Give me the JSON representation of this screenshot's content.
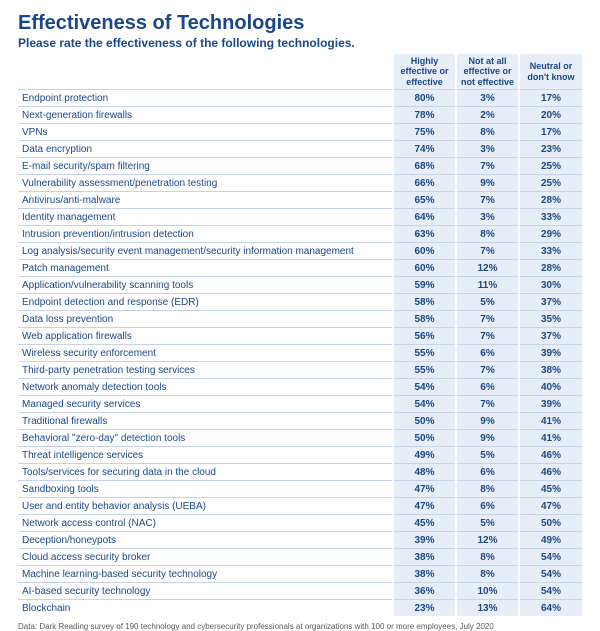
{
  "colors": {
    "primary": "#1a4789",
    "header_bg": "#e8eef7",
    "row_border": "#c5d2e8",
    "footer": "#5a5a5a"
  },
  "title": "Effectiveness of Technologies",
  "subtitle": "Please rate the effectiveness of the following technologies.",
  "columns": [
    "Highly effective or effective",
    "Not at all effective or not effective",
    "Neutral or don't know"
  ],
  "rows": [
    {
      "label": "Endpoint protection",
      "v": [
        "80%",
        "3%",
        "17%"
      ]
    },
    {
      "label": "Next-generation firewalls",
      "v": [
        "78%",
        "2%",
        "20%"
      ]
    },
    {
      "label": "VPNs",
      "v": [
        "75%",
        "8%",
        "17%"
      ]
    },
    {
      "label": "Data encryption",
      "v": [
        "74%",
        "3%",
        "23%"
      ]
    },
    {
      "label": "E-mail security/spam filtering",
      "v": [
        "68%",
        "7%",
        "25%"
      ]
    },
    {
      "label": "Vulnerability assessment/penetration testing",
      "v": [
        "66%",
        "9%",
        "25%"
      ]
    },
    {
      "label": "Antivirus/anti-malware",
      "v": [
        "65%",
        "7%",
        "28%"
      ]
    },
    {
      "label": "Identity management",
      "v": [
        "64%",
        "3%",
        "33%"
      ]
    },
    {
      "label": "Intrusion prevention/intrusion detection",
      "v": [
        "63%",
        "8%",
        "29%"
      ]
    },
    {
      "label": "Log analysis/security event management/security information management",
      "v": [
        "60%",
        "7%",
        "33%"
      ]
    },
    {
      "label": "Patch management",
      "v": [
        "60%",
        "12%",
        "28%"
      ]
    },
    {
      "label": "Application/vulnerability scanning tools",
      "v": [
        "59%",
        "11%",
        "30%"
      ]
    },
    {
      "label": "Endpoint detection and response (EDR)",
      "v": [
        "58%",
        "5%",
        "37%"
      ]
    },
    {
      "label": "Data loss prevention",
      "v": [
        "58%",
        "7%",
        "35%"
      ]
    },
    {
      "label": "Web application firewalls",
      "v": [
        "56%",
        "7%",
        "37%"
      ]
    },
    {
      "label": "Wireless security enforcement",
      "v": [
        "55%",
        "6%",
        "39%"
      ]
    },
    {
      "label": "Third-party penetration testing services",
      "v": [
        "55%",
        "7%",
        "38%"
      ]
    },
    {
      "label": "Network anomaly detection tools",
      "v": [
        "54%",
        "6%",
        "40%"
      ]
    },
    {
      "label": "Managed security services",
      "v": [
        "54%",
        "7%",
        "39%"
      ]
    },
    {
      "label": "Traditional firewalls",
      "v": [
        "50%",
        "9%",
        "41%"
      ]
    },
    {
      "label": "Behavioral \"zero-day\" detection tools",
      "v": [
        "50%",
        "9%",
        "41%"
      ]
    },
    {
      "label": "Threat intelligence services",
      "v": [
        "49%",
        "5%",
        "46%"
      ]
    },
    {
      "label": "Tools/services for securing data in the cloud",
      "v": [
        "48%",
        "6%",
        "46%"
      ]
    },
    {
      "label": "Sandboxing tools",
      "v": [
        "47%",
        "8%",
        "45%"
      ]
    },
    {
      "label": "User and entity behavior analysis (UEBA)",
      "v": [
        "47%",
        "6%",
        "47%"
      ]
    },
    {
      "label": "Network access control (NAC)",
      "v": [
        "45%",
        "5%",
        "50%"
      ]
    },
    {
      "label": "Deception/honeypots",
      "v": [
        "39%",
        "12%",
        "49%"
      ]
    },
    {
      "label": "Cloud access security broker",
      "v": [
        "38%",
        "8%",
        "54%"
      ]
    },
    {
      "label": "Machine learning-based security technology",
      "v": [
        "38%",
        "8%",
        "54%"
      ]
    },
    {
      "label": "AI-based security technology",
      "v": [
        "36%",
        "10%",
        "54%"
      ]
    },
    {
      "label": "Blockchain",
      "v": [
        "23%",
        "13%",
        "64%"
      ]
    }
  ],
  "footer": "Data: Dark Reading survey of 190 technology and cybersecurity professionals at organizations with 100 or more employees, July 2020"
}
